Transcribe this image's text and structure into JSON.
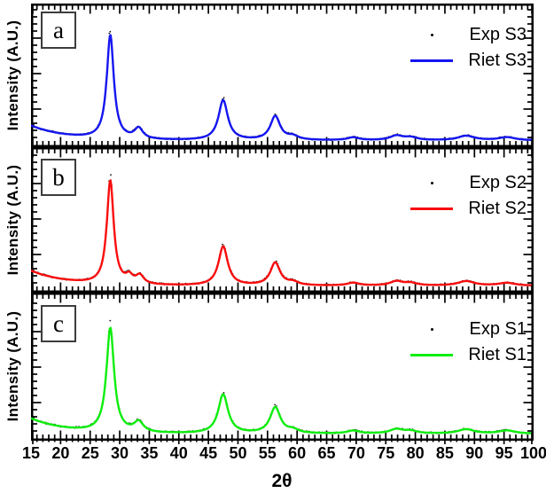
{
  "figure": {
    "xlabel": "2θ",
    "ylabel": "Intensity (A.U.)",
    "x_range": [
      15,
      100
    ],
    "x_ticks": [
      15,
      20,
      25,
      30,
      35,
      40,
      45,
      50,
      55,
      60,
      65,
      70,
      75,
      80,
      85,
      90,
      95,
      100
    ],
    "y_ticks_labeled": false,
    "grid": false
  },
  "chart_data": [
    {
      "type": "line",
      "panel": "a",
      "xlabel": "2θ",
      "ylabel": "Intensity (A.U.)",
      "x_range": [
        15,
        100
      ],
      "legend_position": "top-right",
      "legend": [
        {
          "name": "Exp S3",
          "style": "scatter",
          "color": "#000000"
        },
        {
          "name": "Riet S3",
          "style": "line",
          "color": "#1515f0"
        }
      ],
      "background_model": {
        "base": 0.032,
        "amplitude": 0.105,
        "decay_tau_deg": 6.0
      },
      "peaks_format": [
        "two_theta_deg",
        "relative_intensity",
        "hwhm_deg"
      ],
      "peaks": [
        [
          28.4,
          0.74,
          0.72
        ],
        [
          33.2,
          0.075,
          0.85
        ],
        [
          47.5,
          0.285,
          0.95
        ],
        [
          56.3,
          0.17,
          1.0
        ],
        [
          59.3,
          0.025,
          1.1
        ],
        [
          69.5,
          0.02,
          1.2
        ],
        [
          76.8,
          0.032,
          1.3
        ],
        [
          79.2,
          0.02,
          1.3
        ],
        [
          88.6,
          0.032,
          1.7
        ],
        [
          95.5,
          0.022,
          1.7
        ]
      ]
    },
    {
      "type": "line",
      "panel": "b",
      "xlabel": "2θ",
      "ylabel": "Intensity (A.U.)",
      "x_range": [
        15,
        100
      ],
      "legend_position": "top-right",
      "legend": [
        {
          "name": "Exp S2",
          "style": "scatter",
          "color": "#000000"
        },
        {
          "name": "Riet S2",
          "style": "line",
          "color": "#f90d0d"
        }
      ],
      "background_model": {
        "base": 0.032,
        "amplitude": 0.105,
        "decay_tau_deg": 6.0
      },
      "peaks_format": [
        "two_theta_deg",
        "relative_intensity",
        "hwhm_deg"
      ],
      "peaks": [
        [
          28.4,
          0.73,
          0.7
        ],
        [
          31.6,
          0.05,
          0.7
        ],
        [
          33.4,
          0.06,
          0.8
        ],
        [
          47.5,
          0.275,
          0.95
        ],
        [
          56.3,
          0.16,
          1.0
        ],
        [
          59.3,
          0.022,
          1.1
        ],
        [
          69.5,
          0.02,
          1.2
        ],
        [
          76.8,
          0.03,
          1.3
        ],
        [
          79.2,
          0.018,
          1.3
        ],
        [
          88.6,
          0.032,
          1.7
        ],
        [
          95.5,
          0.02,
          1.7
        ]
      ]
    },
    {
      "type": "line",
      "panel": "c",
      "xlabel": "2θ",
      "ylabel": "Intensity (A.U.)",
      "x_range": [
        15,
        100
      ],
      "legend_position": "top-right",
      "legend": [
        {
          "name": "Exp S1",
          "style": "scatter",
          "color": "#000000"
        },
        {
          "name": "Riet S1",
          "style": "line",
          "color": "#0dee0d"
        }
      ],
      "background_model": {
        "base": 0.032,
        "amplitude": 0.105,
        "decay_tau_deg": 6.0
      },
      "peaks_format": [
        "two_theta_deg",
        "relative_intensity",
        "hwhm_deg"
      ],
      "peaks": [
        [
          28.4,
          0.72,
          0.78
        ],
        [
          33.2,
          0.07,
          0.95
        ],
        [
          47.5,
          0.27,
          1.0
        ],
        [
          56.3,
          0.18,
          1.05
        ],
        [
          59.3,
          0.022,
          1.1
        ],
        [
          69.5,
          0.02,
          1.25
        ],
        [
          76.8,
          0.03,
          1.35
        ],
        [
          79.2,
          0.018,
          1.3
        ],
        [
          88.6,
          0.03,
          1.7
        ],
        [
          95.5,
          0.022,
          1.7
        ]
      ]
    }
  ]
}
